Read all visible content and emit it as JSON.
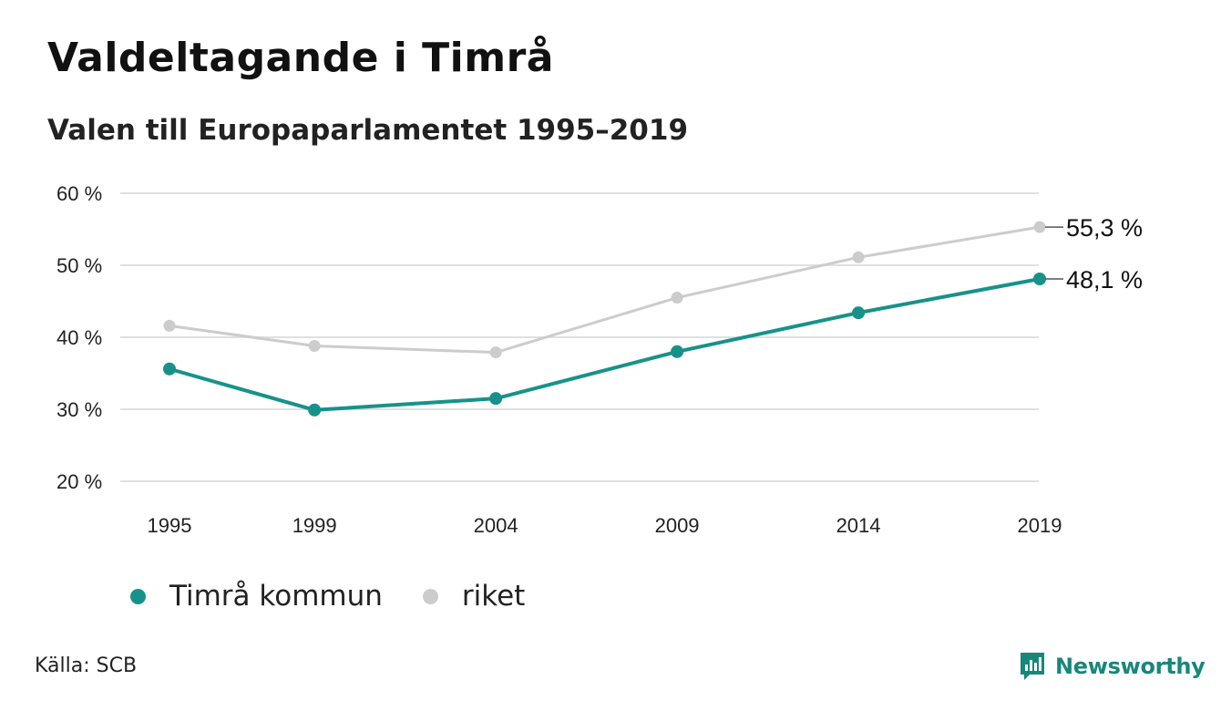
{
  "title": "Valdeltagande i Timrå",
  "subtitle": "Valen till Europaparlamentet 1995–2019",
  "source": "Källa: SCB",
  "brand": {
    "name": "Newsworthy",
    "icon": "newsworthy-logo-icon",
    "color": "#17877a"
  },
  "colors": {
    "timra": "#17928a",
    "riket": "#cccccc",
    "grid": "#e0e0e0",
    "text": "#222222"
  },
  "chart_data": {
    "type": "line",
    "title": "Valdeltagande i Timrå",
    "subtitle": "Valen till Europaparlamentet 1995–2019",
    "categories": [
      "1995",
      "1999",
      "2004",
      "2009",
      "2014",
      "2019"
    ],
    "x": [
      1995,
      1999,
      2004,
      2009,
      2014,
      2019
    ],
    "ylim": [
      20,
      60
    ],
    "yticks": [
      20,
      30,
      40,
      50,
      60
    ],
    "ytick_labels": [
      "20 %",
      "30 %",
      "40 %",
      "50 %",
      "60 %"
    ],
    "grid": true,
    "legend_position": "bottom-left",
    "series": [
      {
        "name": "Timrå kommun",
        "color": "#17928a",
        "values": [
          35.6,
          29.9,
          31.5,
          38.0,
          43.4,
          48.1
        ],
        "end_label": "48,1 %"
      },
      {
        "name": "riket",
        "color": "#cccccc",
        "values": [
          41.6,
          38.8,
          37.9,
          45.5,
          51.1,
          55.3
        ],
        "end_label": "55,3 %"
      }
    ]
  }
}
